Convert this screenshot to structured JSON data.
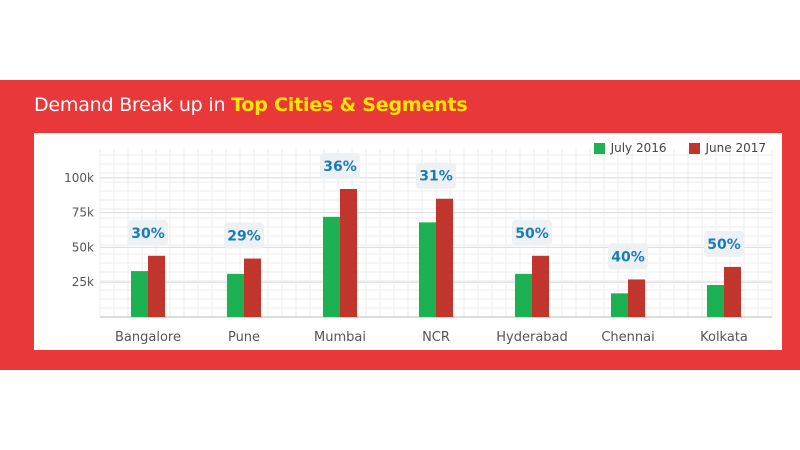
{
  "title": {
    "prefix": "Demand Break up in ",
    "highlight": "Top Cities & Segments"
  },
  "colors": {
    "banner": "#e8383a",
    "highlight": "#ffe600",
    "july": "#1db154",
    "june": "#c0362c",
    "pct": "#1a7bb9"
  },
  "chart_data": {
    "type": "bar",
    "categories": [
      "Bangalore",
      "Pune",
      "Mumbai",
      "NCR",
      "Hyderabad",
      "Chennai",
      "Kolkata"
    ],
    "series": [
      {
        "name": "July 2016",
        "values": [
          33000,
          31000,
          72000,
          68000,
          31000,
          17000,
          23000
        ]
      },
      {
        "name": "June 2017",
        "values": [
          44000,
          42000,
          92000,
          85000,
          44000,
          27000,
          36000
        ]
      }
    ],
    "annotations": [
      "30%",
      "29%",
      "36%",
      "31%",
      "50%",
      "40%",
      "50%"
    ],
    "y_ticks": [
      "25k",
      "50k",
      "75k",
      "100k"
    ],
    "y_tick_values": [
      25000,
      50000,
      75000,
      100000
    ],
    "ylim": [
      0,
      115000
    ],
    "grid": true,
    "legend": "top-right",
    "xlabel": "",
    "ylabel": ""
  }
}
